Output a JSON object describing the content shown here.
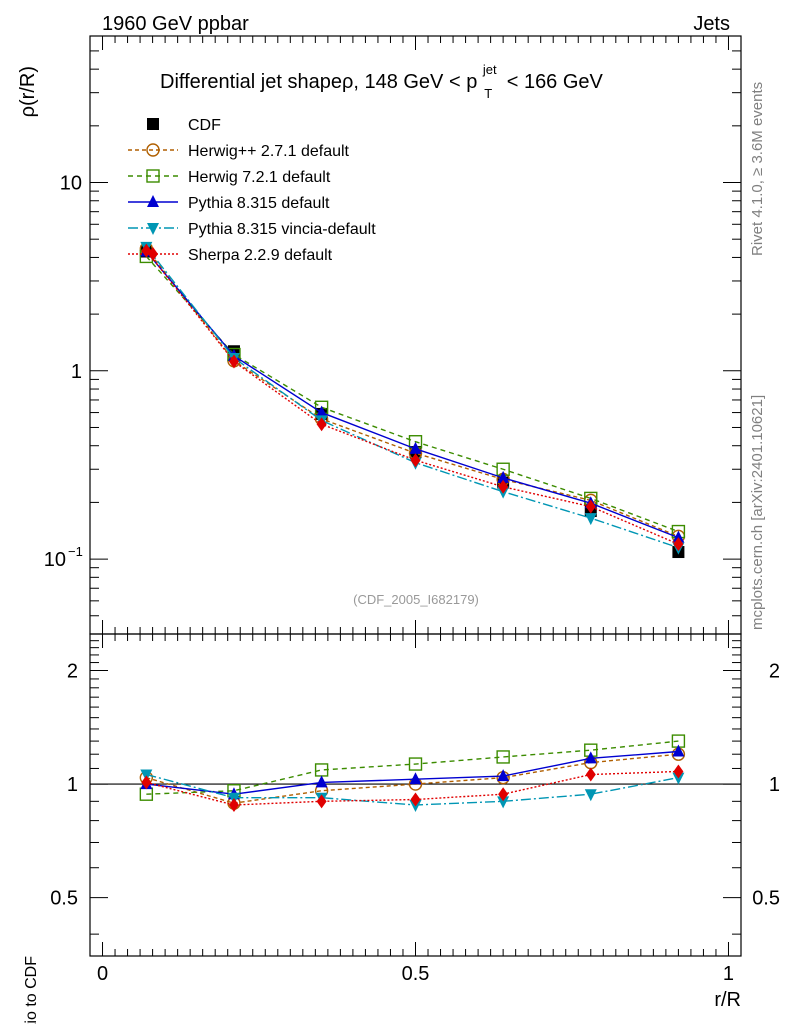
{
  "header": {
    "left": "1960 GeV ppbar",
    "right": "Jets",
    "watermark_code": "(CDF_2005_I682179)",
    "side_rivet": "Rivet 4.1.0, ≥ 3.6M events",
    "side_mcplots": "mcplots.cern.ch [arXiv:2401.10621]"
  },
  "chart_data": {
    "type": "line",
    "title": "Differential jet shapeρ, 148 GeV < p_T^jet < 166 GeV",
    "title_parts": {
      "pre": "Differential jet shapeρ, 148 GeV < p",
      "sup": "jet",
      "sub": "T",
      "post": " < 166 GeV"
    },
    "xlabel": "r/R",
    "ylabel": "ρ(r/R)",
    "ratio_ylabel": "Ratio to CDF",
    "x": [
      0.07,
      0.21,
      0.35,
      0.5,
      0.64,
      0.78,
      0.92
    ],
    "xlim": [
      -0.02,
      1.02
    ],
    "ylim": [
      0.04,
      60
    ],
    "yscale": "log",
    "ratio_ylim": [
      0.35,
      2.5
    ],
    "x_ticks": [
      "0",
      "0.5",
      "1"
    ],
    "x_tick_values": [
      0,
      0.5,
      1
    ],
    "y_ticks": [
      {
        "value": 10,
        "label": "10"
      },
      {
        "value": 1,
        "label": "1"
      },
      {
        "value": 0.1,
        "label": "10",
        "sup": "−1"
      }
    ],
    "ratio_ticks": [
      {
        "value": 2,
        "label": "2"
      },
      {
        "value": 1,
        "label": "1"
      },
      {
        "value": 0.5,
        "label": "0.5"
      }
    ],
    "data": {
      "name": "CDF",
      "color": "#000000",
      "values": [
        4.3,
        1.27,
        0.59,
        0.37,
        0.255,
        0.18,
        0.109
      ]
    },
    "series": [
      {
        "name": "Herwig++ 2.7.1 default",
        "color": "#b05f00",
        "dash": "4,3",
        "marker": "circle-open",
        "values": [
          4.45,
          1.13,
          0.555,
          0.365,
          0.265,
          0.205,
          0.132
        ],
        "ratio": [
          1.04,
          0.89,
          0.96,
          1.0,
          1.04,
          1.14,
          1.2
        ]
      },
      {
        "name": "Herwig 7.2.1 default",
        "color": "#3c8c00",
        "dash": "5,4",
        "marker": "square-open",
        "values": [
          4.05,
          1.22,
          0.64,
          0.42,
          0.3,
          0.21,
          0.14
        ],
        "ratio": [
          0.94,
          0.96,
          1.09,
          1.13,
          1.18,
          1.23,
          1.3
        ]
      },
      {
        "name": "Pythia 8.315 default",
        "color": "#0000d0",
        "dash": "",
        "marker": "triangle-up",
        "values": [
          4.3,
          1.2,
          0.6,
          0.385,
          0.27,
          0.198,
          0.13
        ],
        "ratio": [
          1.0,
          0.94,
          1.01,
          1.03,
          1.05,
          1.17,
          1.22
        ]
      },
      {
        "name": "Pythia 8.315 vincia-default",
        "color": "#0096b4",
        "dash": "10,3,2,3",
        "marker": "triangle-down",
        "values": [
          4.55,
          1.17,
          0.545,
          0.325,
          0.228,
          0.165,
          0.115
        ],
        "ratio": [
          1.06,
          0.92,
          0.92,
          0.88,
          0.9,
          0.94,
          1.04
        ]
      },
      {
        "name": "Sherpa 2.2.9 default",
        "color": "#e00000",
        "dash": "2,2",
        "marker": "diamond",
        "values": [
          4.35,
          1.12,
          0.52,
          0.335,
          0.242,
          0.19,
          0.12
        ],
        "ratio": [
          1.01,
          0.88,
          0.9,
          0.91,
          0.94,
          1.06,
          1.08
        ]
      }
    ]
  }
}
